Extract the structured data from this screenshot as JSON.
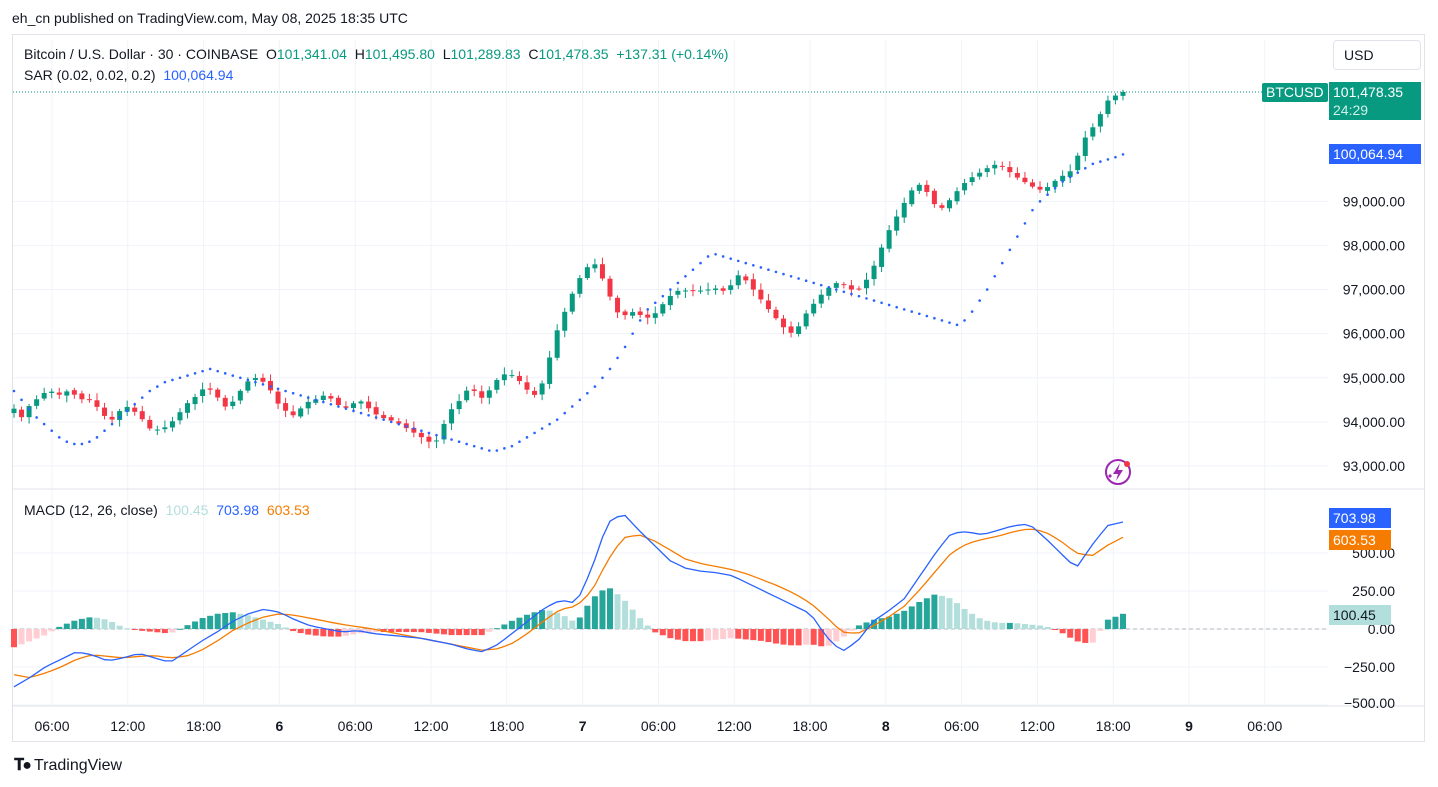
{
  "published": "eh_cn published on TradingView.com, May 08, 2025 18:35 UTC",
  "currency_button": "USD",
  "header": {
    "symbol": "Bitcoin / U.S. Dollar · 30 · COINBASE",
    "o_label": "O",
    "o_value": "101,341.04",
    "h_label": "H",
    "h_value": "101,495.80",
    "l_label": "L",
    "l_value": "101,289.83",
    "c_label": "C",
    "c_value": "101,478.35",
    "change": "+137.31 (+0.14%)"
  },
  "sar_legend": {
    "label": "SAR (0.02, 0.02, 0.2)",
    "value": "100,064.94"
  },
  "macd_legend": {
    "label": "MACD (12, 26, close)",
    "hist": "100.45",
    "macd": "703.98",
    "signal": "603.53"
  },
  "price_tags": {
    "symbol": "BTCUSD",
    "price": "101,478.35",
    "countdown": "24:29",
    "sar": "100,064.94"
  },
  "macd_tags": {
    "macd": "703.98",
    "signal": "603.53",
    "hist": "100.45"
  },
  "colors": {
    "up": "#089981",
    "down": "#f23645",
    "sar": "#2962ff",
    "macd": "#2962ff",
    "signal": "#f57c00",
    "hist_up_strong": "#26a69a",
    "hist_up_weak": "#b2dfdb",
    "hist_down_strong": "#ff5252",
    "hist_down_weak": "#ffcdd2"
  },
  "footer": {
    "brand": "TradingView"
  },
  "chart_data": [
    {
      "type": "candlestick",
      "name": "Bitcoin / U.S. Dollar",
      "interval": "30",
      "x_ticks": [
        "06:00",
        "12:00",
        "18:00",
        "6",
        "06:00",
        "12:00",
        "18:00",
        "7",
        "06:00",
        "12:00",
        "18:00",
        "8",
        "06:00",
        "12:00",
        "18:00",
        "9",
        "06:00"
      ],
      "y_ticks": [
        "93,000.00",
        "94,000.00",
        "95,000.00",
        "96,000.00",
        "97,000.00",
        "98,000.00",
        "99,000.00"
      ],
      "ylim": [
        92750,
        102150
      ],
      "close_path": [
        94300,
        94100,
        94350,
        94500,
        94650,
        94700,
        94600,
        94700,
        94650,
        94500,
        94550,
        94400,
        94200,
        94000,
        94150,
        94400,
        94250,
        94200,
        93900,
        93800,
        93850,
        93900,
        94100,
        94300,
        94500,
        94600,
        94800,
        94700,
        94500,
        94300,
        94500,
        94750,
        94950,
        95000,
        94900,
        94700,
        94400,
        94250,
        94150,
        94300,
        94450,
        94500,
        94600,
        94550,
        94400,
        94300,
        94400,
        94500,
        94350,
        94200,
        94100,
        94050,
        94000,
        93900,
        93800,
        93700,
        93600,
        93500,
        93650,
        94200,
        94350,
        94550,
        94800,
        94650,
        94500,
        94800,
        95000,
        95100,
        95050,
        94900,
        94700,
        94600,
        94900,
        95500,
        96100,
        96500,
        96900,
        97250,
        97500,
        97600,
        97300,
        96900,
        96500,
        96400,
        96500,
        96450,
        96350,
        96400,
        96600,
        96800,
        96950,
        97000,
        96950,
        97000,
        96950,
        97050,
        97000,
        96950,
        97200,
        97400,
        97100,
        96950,
        96700,
        96500,
        96300,
        96100,
        96000,
        96200,
        96500,
        96700,
        96900,
        97050,
        97150,
        97100,
        97000,
        97000,
        97200,
        97500,
        97900,
        98300,
        98600,
        98900,
        99200,
        99400,
        99300,
        99000,
        98800,
        98950,
        99150,
        99350,
        99500,
        99600,
        99700,
        99800,
        99850,
        99750,
        99600,
        99500,
        99400,
        99300,
        99250,
        99350,
        99500,
        99600,
        99700,
        100100,
        100500,
        100700,
        101000,
        101300,
        101400,
        101478
      ],
      "sar_path": [
        94700,
        94500,
        94300,
        94100,
        93950,
        93800,
        93650,
        93550,
        93500,
        93500,
        93550,
        93650,
        93800,
        93950,
        94100,
        94250,
        94400,
        94550,
        94700,
        94800,
        94900,
        94950,
        95000,
        95050,
        95100,
        95150,
        95200,
        95150,
        95100,
        95050,
        95000,
        94950,
        94900,
        94850,
        94800,
        94750,
        94700,
        94650,
        94600,
        94550,
        94500,
        94450,
        94400,
        94350,
        94300,
        94250,
        94200,
        94150,
        94100,
        94050,
        94000,
        93950,
        93900,
        93850,
        93800,
        93750,
        93700,
        93650,
        93600,
        93550,
        93500,
        93450,
        93400,
        93350,
        93350,
        93400,
        93450,
        93550,
        93650,
        93750,
        93850,
        93950,
        94050,
        94200,
        94350,
        94500,
        94650,
        94800,
        95000,
        95200,
        95450,
        95700,
        96000,
        96300,
        96550,
        96700,
        96850,
        97000,
        97150,
        97300,
        97450,
        97600,
        97750,
        97800,
        97750,
        97700,
        97650,
        97600,
        97550,
        97500,
        97450,
        97400,
        97350,
        97300,
        97250,
        97200,
        97150,
        97100,
        97050,
        97000,
        96950,
        96900,
        96850,
        96800,
        96750,
        96700,
        96650,
        96600,
        96550,
        96500,
        96450,
        96400,
        96350,
        96300,
        96250,
        96200,
        96300,
        96500,
        96750,
        97000,
        97300,
        97600,
        97900,
        98200,
        98500,
        98800,
        99000,
        99150,
        99300,
        99450,
        99550,
        99650,
        99750,
        99850,
        99900,
        99950,
        100000,
        100064
      ]
    },
    {
      "type": "macd",
      "name": "MACD (12, 26, close)",
      "y_ticks": [
        "500.00",
        "250.00",
        "0.00",
        "−250.00",
        "−500.00"
      ],
      "ylim": [
        -500,
        800
      ],
      "macd_path": [
        -380,
        -320,
        -250,
        -200,
        -150,
        -170,
        -210,
        -190,
        -160,
        -190,
        -220,
        -150,
        -80,
        -20,
        50,
        100,
        130,
        110,
        60,
        20,
        0,
        -20,
        -10,
        -30,
        -40,
        -50,
        -60,
        -80,
        -100,
        -130,
        -150,
        -100,
        -20,
        60,
        140,
        190,
        170,
        400,
        700,
        760,
        650,
        550,
        450,
        400,
        380,
        370,
        350,
        300,
        250,
        200,
        150,
        100,
        -50,
        -150,
        -80,
        50,
        120,
        200,
        350,
        500,
        630,
        640,
        620,
        650,
        680,
        690,
        600,
        500,
        400,
        550,
        680,
        704
      ],
      "signal_path": [
        -300,
        -320,
        -290,
        -250,
        -200,
        -170,
        -180,
        -190,
        -180,
        -175,
        -190,
        -180,
        -140,
        -80,
        -10,
        40,
        80,
        100,
        90,
        70,
        50,
        30,
        15,
        0,
        -20,
        -40,
        -60,
        -80,
        -100,
        -120,
        -140,
        -130,
        -90,
        -20,
        60,
        130,
        150,
        250,
        450,
        600,
        620,
        580,
        520,
        460,
        430,
        410,
        390,
        360,
        320,
        280,
        230,
        170,
        80,
        -20,
        -30,
        20,
        80,
        150,
        260,
        380,
        500,
        560,
        590,
        610,
        640,
        660,
        640,
        580,
        500,
        480,
        550,
        604
      ],
      "hist_path": [
        -120,
        -80,
        -40,
        20,
        60,
        80,
        60,
        10,
        -10,
        -20,
        -30,
        20,
        70,
        100,
        110,
        90,
        60,
        30,
        -20,
        -40,
        -50,
        -50,
        -30,
        -20,
        -20,
        -20,
        -20,
        -30,
        -40,
        -40,
        -40,
        10,
        60,
        100,
        130,
        100,
        40,
        200,
        280,
        200,
        80,
        -20,
        -60,
        -80,
        -80,
        -70,
        -60,
        -70,
        -80,
        -100,
        -110,
        -100,
        -120,
        -60,
        20,
        60,
        80,
        120,
        180,
        230,
        200,
        120,
        60,
        40,
        40,
        30,
        20,
        -20,
        -80,
        -100,
        60,
        100
      ]
    }
  ]
}
